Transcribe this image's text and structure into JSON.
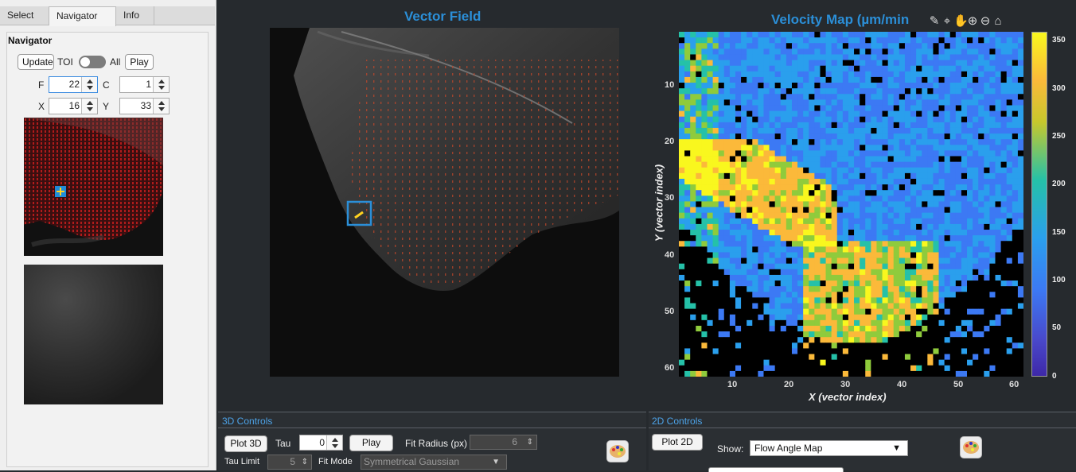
{
  "tabs": [
    "Select",
    "Navigator",
    "Info"
  ],
  "navigator": {
    "title": "Navigator",
    "update_label": "Update",
    "toi_label": "TOI",
    "all_label": "All",
    "play_label": "Play",
    "f_label": "F",
    "f_value": "22",
    "c_label": "C",
    "c_value": "1",
    "x_label": "X",
    "x_value": "16",
    "y_label": "Y",
    "y_value": "33"
  },
  "vector_field": {
    "title": "Vector Field"
  },
  "velocity_map": {
    "title": "Velocity  Map  (µm/min",
    "xlabel": "X (vector index)",
    "ylabel": "Y (vector index)",
    "xticks": [
      "10",
      "20",
      "30",
      "40",
      "50",
      "60"
    ],
    "yticks": [
      "10",
      "20",
      "30",
      "40",
      "50",
      "60"
    ],
    "colorbar_ticks": [
      "350",
      "300",
      "250",
      "200",
      "150",
      "100",
      "50",
      "0"
    ]
  },
  "toolbar_icons": [
    "brush-icon",
    "data-tip-icon",
    "pan-icon",
    "zoom-in-icon",
    "zoom-out-icon",
    "home-icon"
  ],
  "controls_3d": {
    "title": "3D Controls",
    "plot_label": "Plot 3D",
    "tau_label": "Tau",
    "tau_value": "0",
    "play_label": "Play",
    "fit_radius_label": "Fit Radius (px)",
    "fit_radius_value": "6",
    "tau_limit_label": "Tau Limit",
    "tau_limit_value": "5",
    "fit_mode_label": "Fit Mode",
    "fit_mode_value": "Symmetrical Gaussian"
  },
  "controls_2d": {
    "title": "2D Controls",
    "plot_label": "Plot 2D",
    "show_label": "Show:",
    "show_value": "Flow Angle Map"
  }
}
